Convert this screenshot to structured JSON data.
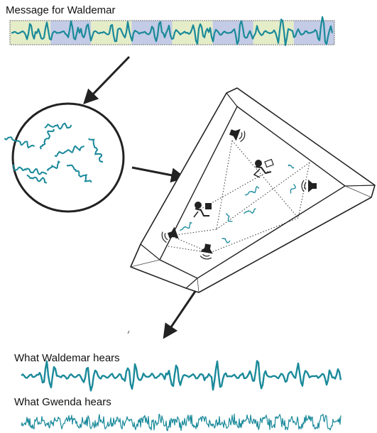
{
  "title": "Message for Waldemar",
  "waldemar_label": "What Waldemar hears",
  "gwenda_label": "What Gwenda hears",
  "colors": {
    "wave": "#1a8a9a",
    "band_green": "#e4edc8",
    "band_blue": "#c3cbe6",
    "ink": "#222222"
  },
  "icons": [
    "speaker-icon",
    "person-with-laptop-icon",
    "arrow-icon",
    "circle-of-wave-fragments"
  ]
}
